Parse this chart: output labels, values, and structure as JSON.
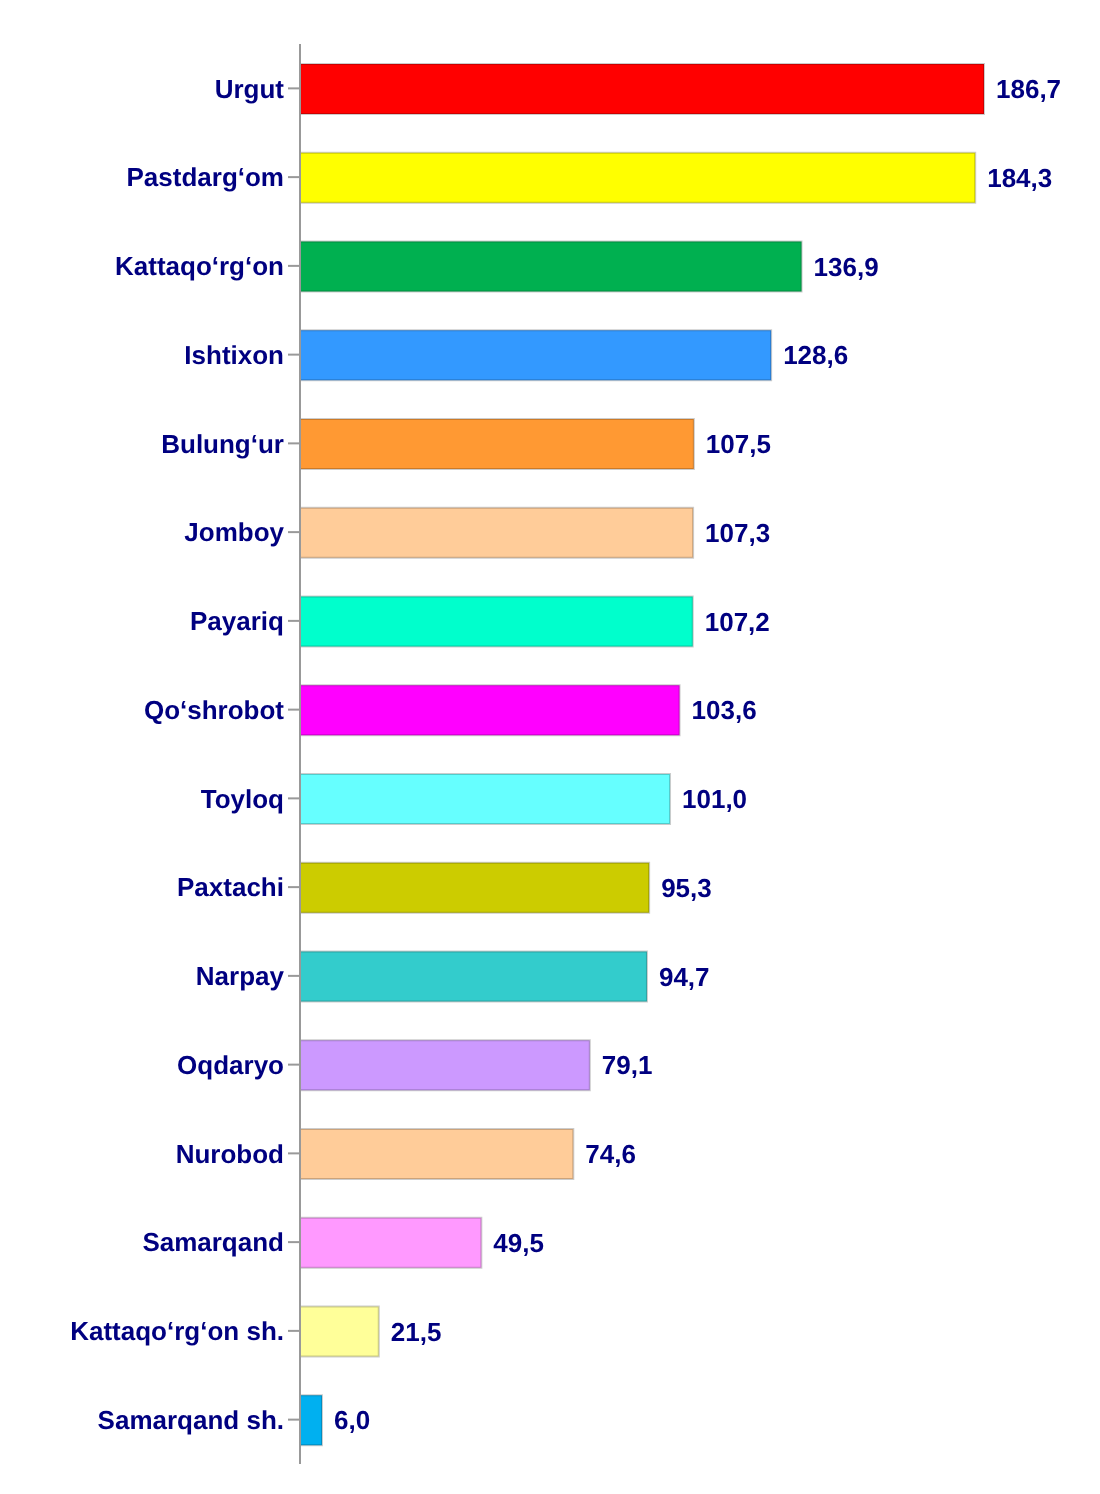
{
  "chart_data": {
    "type": "bar",
    "orientation": "horizontal",
    "categories": [
      "Urgut",
      "Pastdarg‘om",
      "Kattaqo‘rg‘on",
      "Ishtixon",
      "Bulung‘ur",
      "Jomboy",
      "Payariq",
      "Qo‘shrobot",
      "Toyloq",
      "Paxtachi",
      "Narpay",
      "Oqdaryo",
      "Nurobod",
      "Samarqand",
      "Kattaqo‘rg‘on sh.",
      "Samarqand sh."
    ],
    "values": [
      186.7,
      184.3,
      136.9,
      128.6,
      107.5,
      107.3,
      107.2,
      103.6,
      101.0,
      95.3,
      94.7,
      79.1,
      74.6,
      49.5,
      21.5,
      6.0
    ],
    "value_labels": [
      "186,7",
      "184,3",
      "136,9",
      "128,6",
      "107,5",
      "107,3",
      "107,2",
      "103,6",
      "101,0",
      "95,3",
      "94,7",
      "79,1",
      "74,6",
      "49,5",
      "21,5",
      "6,0"
    ],
    "colors": [
      "#ff0000",
      "#ffff00",
      "#00b050",
      "#3399ff",
      "#ff9933",
      "#ffcc99",
      "#00ffcc",
      "#ff00ff",
      "#66ffff",
      "#cccc00",
      "#33cccc",
      "#cc99ff",
      "#ffcc99",
      "#ff99ff",
      "#ffff99",
      "#00b0f0"
    ]
  }
}
